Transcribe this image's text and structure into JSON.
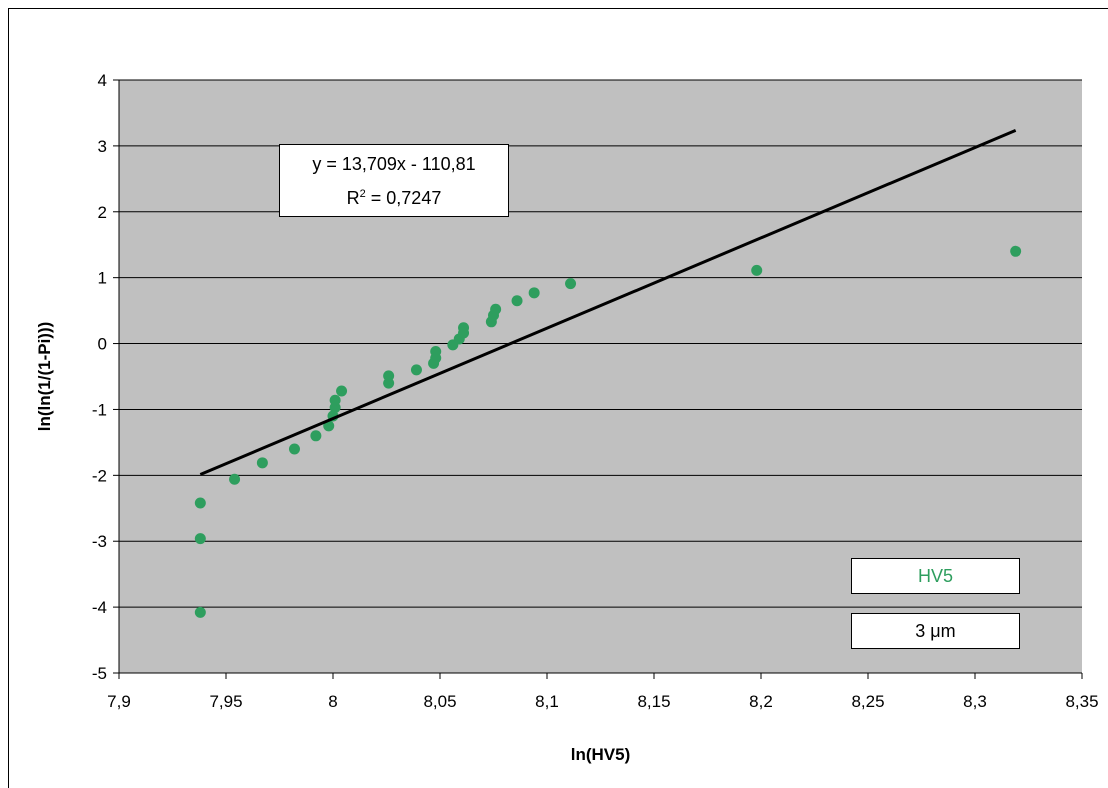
{
  "chart_data": {
    "type": "scatter",
    "xlabel": "ln(HV5)",
    "ylabel": "ln(ln(1/(1-Pi)))",
    "xlim": [
      7.9,
      8.35
    ],
    "ylim": [
      -5,
      4
    ],
    "xticks": [
      "7,9",
      "7,95",
      "8",
      "8,05",
      "8,1",
      "8,15",
      "8,2",
      "8,25",
      "8,3",
      "8,35"
    ],
    "yticks": [
      "4",
      "3",
      "2",
      "1",
      "0",
      "-1",
      "-2",
      "-3",
      "-4",
      "-5"
    ],
    "grid": "horizontal",
    "background": "#c0c0c0",
    "series": [
      {
        "name": "HV5",
        "color": "#2e9e5e",
        "x": [
          7.938,
          7.938,
          7.938,
          7.954,
          7.967,
          7.982,
          7.992,
          7.998,
          8.0,
          8.001,
          8.001,
          8.004,
          8.026,
          8.026,
          8.039,
          8.047,
          8.048,
          8.048,
          8.056,
          8.059,
          8.061,
          8.061,
          8.074,
          8.075,
          8.076,
          8.086,
          8.094,
          8.111,
          8.198,
          8.319
        ],
        "y": [
          -4.08,
          -2.96,
          -2.42,
          -2.06,
          -1.81,
          -1.6,
          -1.4,
          -1.25,
          -1.1,
          -0.97,
          -0.86,
          -0.72,
          -0.6,
          -0.49,
          -0.4,
          -0.3,
          -0.22,
          -0.12,
          -0.02,
          0.07,
          0.16,
          0.24,
          0.33,
          0.43,
          0.52,
          0.65,
          0.77,
          0.91,
          1.11,
          1.4
        ]
      }
    ],
    "trendline": {
      "x_range": [
        7.938,
        8.319
      ],
      "slope": 13.709,
      "intercept": -110.81,
      "color": "#000000"
    },
    "equation": "y = 13,709x - 110,81",
    "r2_prefix": "R",
    "r2_sup": "2",
    "r2_value": " = 0,7247",
    "legend_series": "HV5",
    "legend_size": "3 μm"
  }
}
